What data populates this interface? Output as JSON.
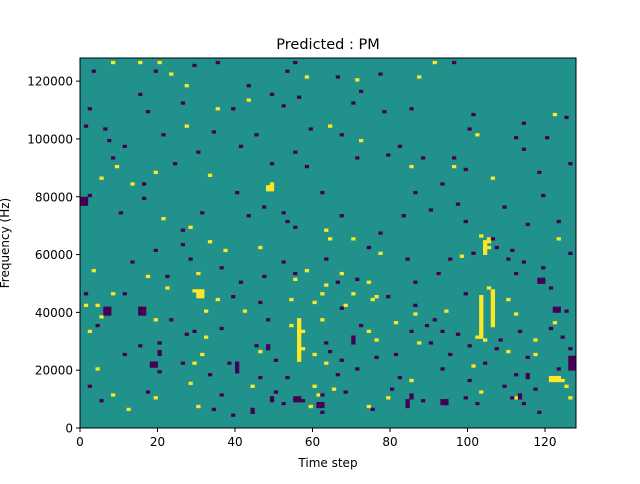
{
  "chart_data": {
    "type": "heatmap",
    "title": "Predicted : PM",
    "xlabel": "Time step",
    "ylabel": "Frequency (Hz)",
    "xlim": [
      0,
      128
    ],
    "ylim": [
      0,
      128000
    ],
    "x_ticks": [
      0,
      20,
      40,
      60,
      80,
      100,
      120
    ],
    "y_ticks": [
      0,
      20000,
      40000,
      60000,
      80000,
      100000,
      120000
    ],
    "y_tick_labels": [
      "0",
      "20000",
      "40000",
      "60000",
      "80000",
      "100000",
      "120000"
    ],
    "grid": false,
    "legend": "none",
    "colors": {
      "background": "#21918c",
      "high": "#fde725",
      "low": "#440154"
    },
    "levels": {
      "background": 0,
      "high": 1,
      "low": -1
    },
    "grid_shape": {
      "time_steps": 128,
      "frequency_bins": 128,
      "bin_width_hz": 1000
    },
    "cells": {
      "high": [
        [
          8,
          126
        ],
        [
          15,
          126
        ],
        [
          20,
          126
        ],
        [
          23,
          122
        ],
        [
          27,
          118
        ],
        [
          35,
          110
        ],
        [
          43,
          113
        ],
        [
          58,
          121
        ],
        [
          71,
          120
        ],
        [
          87,
          121
        ],
        [
          91,
          126
        ],
        [
          96,
          90
        ],
        [
          102,
          101
        ],
        [
          5,
          86
        ],
        [
          9,
          90
        ],
        [
          13,
          84
        ],
        [
          19,
          88
        ],
        [
          27,
          104
        ],
        [
          33,
          87
        ],
        [
          49,
          84
        ],
        [
          64,
          104
        ],
        [
          72,
          99
        ],
        [
          85,
          90
        ],
        [
          106,
          86
        ],
        [
          122,
          108
        ],
        [
          21,
          72
        ],
        [
          28,
          69
        ],
        [
          33,
          64
        ],
        [
          37,
          61
        ],
        [
          46,
          62
        ],
        [
          58,
          54
        ],
        [
          63,
          68
        ],
        [
          64,
          65
        ],
        [
          67,
          53
        ],
        [
          70,
          65
        ],
        [
          74,
          50
        ],
        [
          77,
          60
        ],
        [
          98,
          59
        ],
        [
          103,
          66
        ],
        [
          104,
          64
        ],
        [
          105,
          62
        ],
        [
          123,
          65
        ],
        [
          3,
          54
        ],
        [
          8,
          46
        ],
        [
          17,
          52
        ],
        [
          22,
          48
        ],
        [
          29,
          47
        ],
        [
          30,
          53
        ],
        [
          32,
          40
        ],
        [
          42,
          40
        ],
        [
          55,
          51
        ],
        [
          60,
          43
        ],
        [
          63,
          49
        ],
        [
          70,
          46
        ],
        [
          75,
          44
        ],
        [
          76,
          45
        ],
        [
          94,
          40
        ],
        [
          105,
          48
        ],
        [
          110,
          44
        ],
        [
          112,
          39
        ],
        [
          122,
          36
        ],
        [
          1,
          42
        ],
        [
          4,
          42
        ],
        [
          5,
          38
        ],
        [
          2,
          33
        ],
        [
          4,
          20
        ],
        [
          19,
          37
        ],
        [
          32,
          31
        ],
        [
          35,
          44
        ],
        [
          54,
          44
        ],
        [
          57,
          33
        ],
        [
          62,
          46
        ],
        [
          68,
          42
        ],
        [
          74,
          33
        ],
        [
          76,
          30
        ],
        [
          81,
          36
        ],
        [
          86,
          39
        ],
        [
          87,
          29
        ],
        [
          102,
          31
        ],
        [
          110,
          26
        ],
        [
          117,
          30
        ],
        [
          8,
          11
        ],
        [
          12,
          6
        ],
        [
          19,
          10
        ],
        [
          28,
          15
        ],
        [
          30,
          7
        ],
        [
          44,
          14
        ],
        [
          59,
          7
        ],
        [
          60,
          14
        ],
        [
          61,
          11
        ],
        [
          65,
          13
        ],
        [
          74,
          7
        ],
        [
          79,
          10
        ],
        [
          85,
          16
        ],
        [
          103,
          12
        ],
        [
          112,
          10
        ],
        [
          123,
          17
        ],
        [
          124,
          16
        ],
        [
          29,
          22
        ],
        [
          31,
          25
        ],
        [
          46,
          26
        ],
        [
          57,
          27
        ],
        [
          60,
          25
        ],
        [
          63,
          22
        ],
        [
          101,
          21
        ],
        [
          104,
          30
        ],
        [
          117,
          25
        ],
        [
          125,
          14
        ],
        [
          126,
          10
        ],
        [
          54,
          35
        ],
        [
          62,
          37
        ]
      ],
      "high_runs": [
        [
          2,
          1,
          42,
          2
        ],
        [
          30,
          29,
          48,
          3
        ],
        [
          31,
          30,
          58,
          2
        ],
        [
          56,
          56,
          23,
          15
        ],
        [
          57,
          55,
          29,
          5
        ],
        [
          57,
          55,
          49,
          3
        ],
        [
          58,
          57,
          33,
          24
        ],
        [
          59,
          58,
          44,
          6
        ],
        [
          60,
          58,
          35,
          10
        ],
        [
          77,
          76,
          39,
          6
        ],
        [
          102,
          101,
          57,
          2
        ],
        [
          103,
          103,
          31,
          15
        ],
        [
          104,
          104,
          60,
          4
        ],
        [
          105,
          105,
          64,
          2
        ],
        [
          106,
          106,
          35,
          13
        ],
        [
          121,
          123,
          16,
          2
        ],
        [
          30,
          31,
          45,
          3
        ],
        [
          48,
          49,
          82,
          2
        ]
      ],
      "low": [
        [
          3,
          123
        ],
        [
          19,
          123
        ],
        [
          29,
          125
        ],
        [
          35,
          126
        ],
        [
          53,
          123
        ],
        [
          55,
          126
        ],
        [
          66,
          121
        ],
        [
          77,
          122
        ],
        [
          96,
          126
        ],
        [
          15,
          115
        ],
        [
          26,
          112
        ],
        [
          43,
          118
        ],
        [
          49,
          115
        ],
        [
          52,
          111
        ],
        [
          56,
          114
        ],
        [
          72,
          116
        ],
        [
          78,
          109
        ],
        [
          85,
          110
        ],
        [
          101,
          108
        ],
        [
          114,
          105
        ],
        [
          120,
          100
        ],
        [
          125,
          107
        ],
        [
          2,
          110
        ],
        [
          6,
          103
        ],
        [
          7,
          99
        ],
        [
          11,
          97
        ],
        [
          17,
          109
        ],
        [
          21,
          101
        ],
        [
          24,
          91
        ],
        [
          30,
          95
        ],
        [
          34,
          102
        ],
        [
          41,
          97
        ],
        [
          49,
          91
        ],
        [
          55,
          95
        ],
        [
          59,
          103
        ],
        [
          67,
          101
        ],
        [
          71,
          93
        ],
        [
          79,
          94
        ],
        [
          88,
          93
        ],
        [
          96,
          93
        ],
        [
          99,
          89
        ],
        [
          112,
          100
        ],
        [
          114,
          96
        ],
        [
          118,
          88
        ],
        [
          126,
          91
        ],
        [
          2,
          80
        ],
        [
          10,
          74
        ],
        [
          16,
          79
        ],
        [
          26,
          68
        ],
        [
          31,
          74
        ],
        [
          40,
          81
        ],
        [
          43,
          73
        ],
        [
          47,
          76
        ],
        [
          52,
          74
        ],
        [
          53,
          71
        ],
        [
          55,
          69
        ],
        [
          62,
          81
        ],
        [
          67,
          73
        ],
        [
          77,
          67
        ],
        [
          83,
          73
        ],
        [
          86,
          81
        ],
        [
          93,
          84
        ],
        [
          97,
          77
        ],
        [
          99,
          71
        ],
        [
          106,
          65
        ],
        [
          111,
          61
        ],
        [
          114,
          57
        ],
        [
          119,
          80
        ],
        [
          123,
          71
        ],
        [
          126,
          60
        ],
        [
          11,
          46
        ],
        [
          13,
          57
        ],
        [
          19,
          61
        ],
        [
          22,
          52
        ],
        [
          26,
          63
        ],
        [
          28,
          58
        ],
        [
          36,
          55
        ],
        [
          39,
          45
        ],
        [
          41,
          50
        ],
        [
          46,
          43
        ],
        [
          47,
          52
        ],
        [
          52,
          57
        ],
        [
          55,
          53
        ],
        [
          63,
          58
        ],
        [
          66,
          50
        ],
        [
          71,
          51
        ],
        [
          74,
          62
        ],
        [
          79,
          45
        ],
        [
          84,
          58
        ],
        [
          86,
          50
        ],
        [
          92,
          53
        ],
        [
          95,
          58
        ],
        [
          99,
          46
        ],
        [
          101,
          60
        ],
        [
          107,
          62
        ],
        [
          110,
          58
        ],
        [
          112,
          53
        ],
        [
          119,
          55
        ],
        [
          121,
          48
        ],
        [
          125,
          40
        ],
        [
          1,
          46
        ],
        [
          4,
          35
        ],
        [
          11,
          25
        ],
        [
          15,
          28
        ],
        [
          20,
          29
        ],
        [
          23,
          37
        ],
        [
          27,
          32
        ],
        [
          29,
          33
        ],
        [
          36,
          34
        ],
        [
          38,
          22
        ],
        [
          40,
          19
        ],
        [
          45,
          28
        ],
        [
          48,
          37
        ],
        [
          50,
          23
        ],
        [
          53,
          17
        ],
        [
          63,
          29
        ],
        [
          67,
          41
        ],
        [
          72,
          35
        ],
        [
          76,
          24
        ],
        [
          81,
          25
        ],
        [
          85,
          33
        ],
        [
          89,
          35
        ],
        [
          91,
          37
        ],
        [
          95,
          25
        ],
        [
          97,
          32
        ],
        [
          100,
          28
        ],
        [
          104,
          22
        ],
        [
          107,
          27
        ],
        [
          112,
          18
        ],
        [
          115,
          24
        ],
        [
          117,
          13
        ],
        [
          118,
          5
        ],
        [
          123,
          20
        ],
        [
          126,
          27
        ],
        [
          2,
          14
        ],
        [
          5,
          9
        ],
        [
          17,
          12
        ],
        [
          20,
          19
        ],
        [
          26,
          22
        ],
        [
          33,
          18
        ],
        [
          34,
          6
        ],
        [
          36,
          11
        ],
        [
          39,
          4
        ],
        [
          46,
          17
        ],
        [
          50,
          12
        ],
        [
          52,
          8
        ],
        [
          57,
          9
        ],
        [
          62,
          5
        ],
        [
          66,
          18
        ],
        [
          68,
          12
        ],
        [
          71,
          20
        ],
        [
          75,
          6
        ],
        [
          80,
          13
        ],
        [
          82,
          17
        ],
        [
          88,
          9
        ],
        [
          93,
          20
        ],
        [
          100,
          16
        ],
        [
          102,
          8
        ],
        [
          109,
          14
        ],
        [
          111,
          10
        ],
        [
          114,
          8
        ],
        [
          1,
          104
        ],
        [
          8,
          93
        ],
        [
          16,
          84
        ],
        [
          39,
          110
        ],
        [
          45,
          101
        ],
        [
          58,
          90
        ],
        [
          70,
          112
        ],
        [
          82,
          97
        ],
        [
          90,
          75
        ],
        [
          100,
          103
        ],
        [
          109,
          76
        ],
        [
          115,
          70
        ],
        [
          121,
          34
        ],
        [
          124,
          31
        ],
        [
          113,
          33
        ],
        [
          108,
          30
        ],
        [
          90,
          29
        ],
        [
          86,
          42
        ],
        [
          62,
          11
        ],
        [
          64,
          26
        ],
        [
          67,
          23
        ],
        [
          93,
          33
        ],
        [
          99,
          10
        ]
      ],
      "low_runs": [
        [
          0,
          1,
          77,
          3
        ],
        [
          6,
          7,
          39,
          3
        ],
        [
          15,
          16,
          39,
          3
        ],
        [
          18,
          19,
          21,
          2
        ],
        [
          40,
          40,
          20,
          3
        ],
        [
          48,
          48,
          27,
          2
        ],
        [
          49,
          49,
          9,
          2
        ],
        [
          55,
          56,
          9,
          2
        ],
        [
          61,
          62,
          7,
          2
        ],
        [
          84,
          84,
          7,
          3
        ],
        [
          85,
          85,
          10,
          2
        ],
        [
          93,
          94,
          8,
          2
        ],
        [
          113,
          113,
          10,
          2
        ],
        [
          118,
          119,
          50,
          2
        ],
        [
          122,
          123,
          40,
          2
        ],
        [
          126,
          127,
          20,
          5
        ],
        [
          115,
          115,
          17,
          2
        ],
        [
          20,
          20,
          25,
          2
        ],
        [
          44,
          44,
          5,
          2
        ],
        [
          70,
          70,
          29,
          3
        ]
      ]
    }
  }
}
